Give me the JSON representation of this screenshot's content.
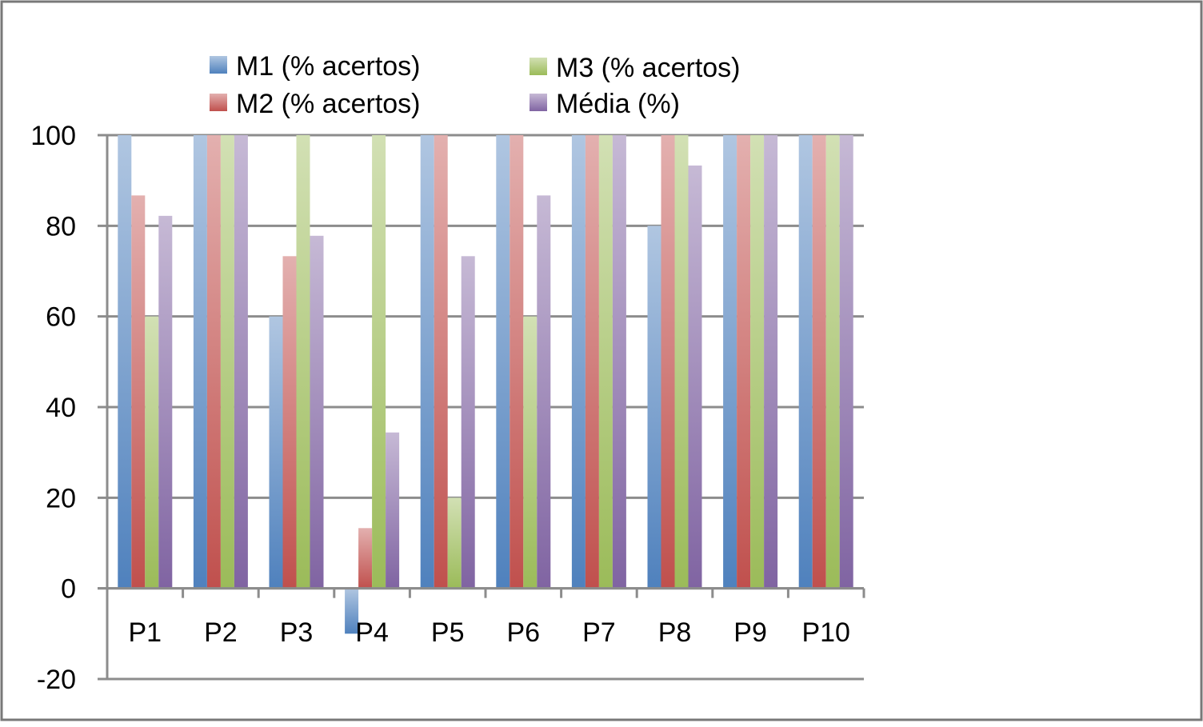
{
  "colors": {
    "border": "#787878",
    "grid": "#8c8c8c",
    "axis": "#8c8c8c"
  },
  "chart_data": {
    "type": "bar",
    "title": "",
    "xlabel": "",
    "ylabel": "",
    "categories": [
      "P1",
      "P2",
      "P3",
      "P4",
      "P5",
      "P6",
      "P7",
      "P8",
      "P9",
      "P10"
    ],
    "ylim": [
      -20,
      100
    ],
    "yticks": [
      "-20",
      "0",
      "20",
      "40",
      "60",
      "80",
      "100"
    ],
    "grid": true,
    "legend_position": "top",
    "series": [
      {
        "name": "M1 (% acertos)",
        "color": "#4f81bd",
        "values": [
          100,
          100,
          60,
          -10,
          100,
          100,
          100,
          80,
          100,
          100
        ]
      },
      {
        "name": "M2 (% acertos)",
        "color": "#c0504d",
        "values": [
          86.7,
          100,
          73.3,
          13.3,
          100,
          100,
          100,
          100,
          100,
          100
        ]
      },
      {
        "name": "M3 (% acertos)",
        "color": "#9bbb59",
        "values": [
          60,
          100,
          100,
          100,
          20,
          60,
          100,
          100,
          100,
          100
        ]
      },
      {
        "name": "Média (%)",
        "color": "#8064a2",
        "values": [
          82.2,
          100,
          77.8,
          34.4,
          73.3,
          86.7,
          100,
          93.3,
          100,
          100
        ]
      }
    ]
  }
}
